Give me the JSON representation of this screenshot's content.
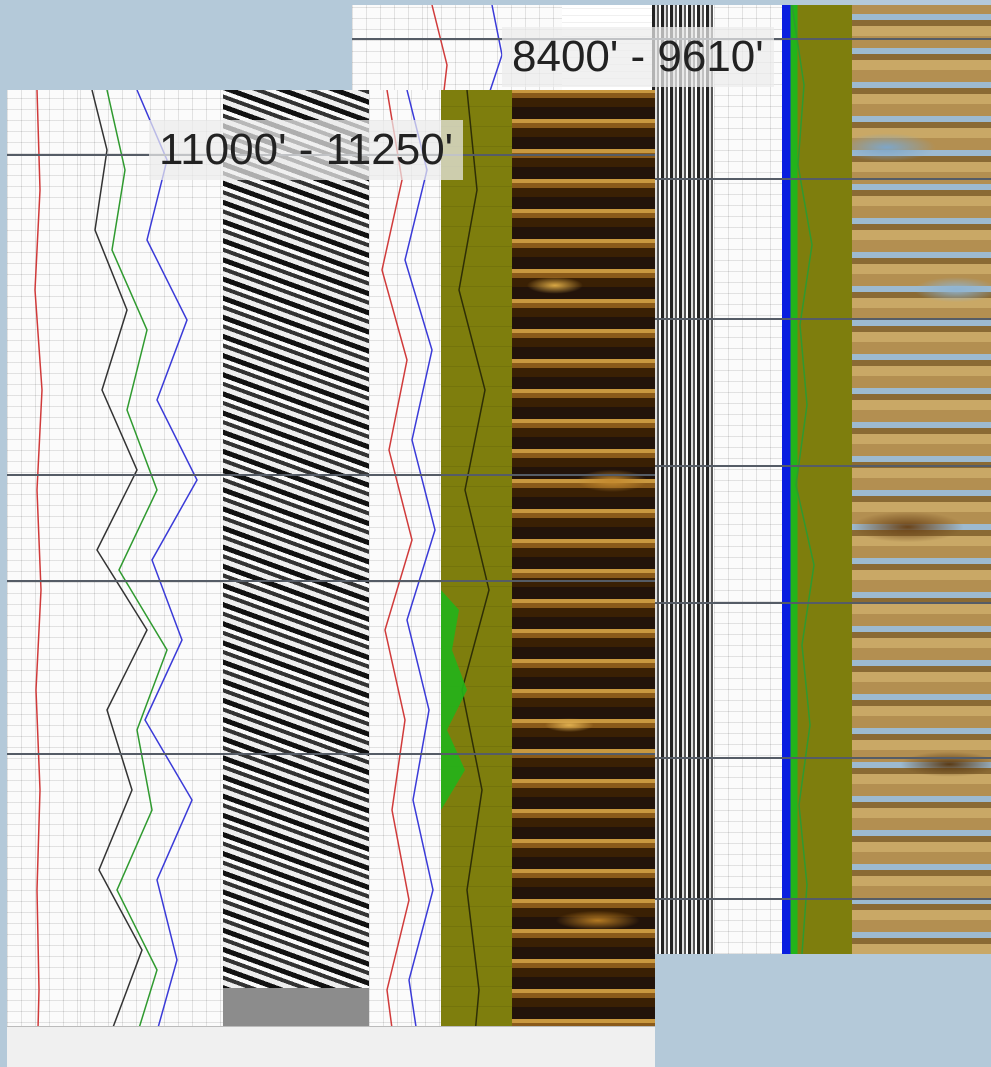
{
  "panels": {
    "back": {
      "depth_range": "8400' - 9610'"
    },
    "front": {
      "depth_range": "11000' - 11250'"
    }
  },
  "colors": {
    "background": "#b4c9d9",
    "olive_track": "#7e7e0d",
    "porosity_fill": "#0a1fe0",
    "curve_red": "#d03a3a",
    "curve_blue": "#3a3ad8",
    "curve_green": "#2f9a2f"
  }
}
